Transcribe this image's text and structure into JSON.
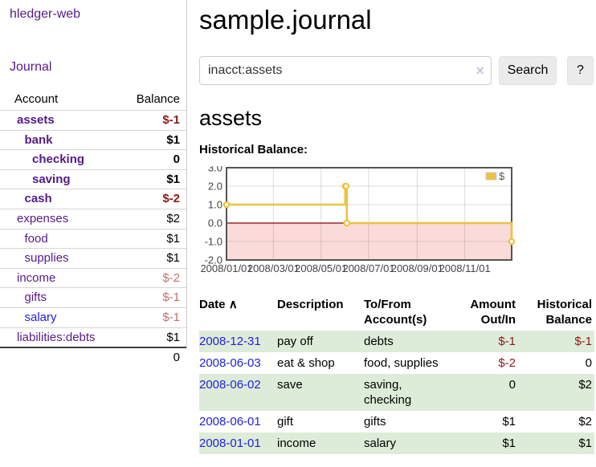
{
  "colors": {
    "purple": "#551a8b",
    "blue": "#2222dd",
    "neg-strong": "#8b1a1a",
    "neg-soft": "#bf7070",
    "row-green": "#ddecd8",
    "gold": "#edc240",
    "pink": "#fbdada",
    "zero": "#8b0000",
    "grid": "#545454"
  },
  "sidebar": {
    "brand": "hledger-web",
    "journal_link": "Journal",
    "table": {
      "account_header": "Account",
      "balance_header": "Balance",
      "rows": [
        {
          "name": "assets",
          "balance": "$-1",
          "depth": 0,
          "bold": true,
          "neg": "strong"
        },
        {
          "name": "bank",
          "balance": "$1",
          "depth": 1,
          "bold": true
        },
        {
          "name": "checking",
          "balance": "0",
          "depth": 2,
          "bold": true
        },
        {
          "name": "saving",
          "balance": "$1",
          "depth": 2,
          "bold": true
        },
        {
          "name": "cash",
          "balance": "$-2",
          "depth": 1,
          "bold": true,
          "neg": "strong"
        },
        {
          "name": "expenses",
          "balance": "$2",
          "depth": 0
        },
        {
          "name": "food",
          "balance": "$1",
          "depth": 1
        },
        {
          "name": "supplies",
          "balance": "$1",
          "depth": 1
        },
        {
          "name": "income",
          "balance": "$-2",
          "depth": 0,
          "neg": "soft"
        },
        {
          "name": "gifts",
          "balance": "$-1",
          "depth": 1,
          "neg": "soft"
        },
        {
          "name": "salary",
          "balance": "$-1",
          "depth": 1,
          "neg": "soft",
          "blue": true
        },
        {
          "name": "liabilities:debts",
          "balance": "$1",
          "depth": 0
        }
      ],
      "total": "0"
    }
  },
  "main": {
    "title": "sample.journal",
    "search": {
      "value": "inacct:assets",
      "clear_icon": "×",
      "button_label": "Search",
      "help_label": "?"
    },
    "account_heading": "assets",
    "chart_label": "Historical Balance:"
  },
  "chart_data": {
    "type": "line",
    "title": "Historical Balance:",
    "style": "step-after",
    "ylim": [
      -2,
      3
    ],
    "x_range_days": 365,
    "grid": true,
    "legend": {
      "label": "$",
      "position": "top-right"
    },
    "series": [
      {
        "name": "$",
        "color": "#edc240",
        "points": [
          {
            "date": "2008/01/01",
            "day": 0,
            "value": 1
          },
          {
            "date": "2008/06/01",
            "day": 152,
            "value": 2
          },
          {
            "date": "2008/06/02",
            "day": 153,
            "value": 2
          },
          {
            "date": "2008/06/03",
            "day": 154,
            "value": 0
          },
          {
            "date": "2008/12/31",
            "day": 365,
            "value": -1
          }
        ]
      }
    ],
    "x_ticks": [
      {
        "label": "2008/01/01",
        "day": 0
      },
      {
        "label": "2008/03/01",
        "day": 60
      },
      {
        "label": "2008/05/01",
        "day": 121
      },
      {
        "label": "2008/07/01",
        "day": 182
      },
      {
        "label": "2008/09/01",
        "day": 244
      },
      {
        "label": "2008/11/01",
        "day": 305
      }
    ],
    "y_ticks": [
      {
        "label": "3.0",
        "value": 3
      },
      {
        "label": "2.0",
        "value": 2
      },
      {
        "label": "1.0",
        "value": 1
      },
      {
        "label": "0.0",
        "value": 0
      },
      {
        "label": "-1.0",
        "value": -1
      },
      {
        "label": "-2.0",
        "value": -2
      }
    ],
    "negative_region_fill": "#fbdada",
    "zero_line_color": "#8b0000"
  },
  "register": {
    "headers": {
      "date": "Date",
      "sort_indicator": "∧",
      "description": "Description",
      "accounts": "To/From Account(s)",
      "amount": "Amount Out/In",
      "balance": "Historical Balance"
    },
    "rows": [
      {
        "date": "2008-12-31",
        "description": "pay off",
        "accounts": "debts",
        "amount": "$-1",
        "amount_neg": true,
        "balance": "$-1",
        "balance_neg": true,
        "shaded": true
      },
      {
        "date": "2008-06-03",
        "description": "eat & shop",
        "accounts": "food, supplies",
        "amount": "$-2",
        "amount_neg": true,
        "balance": "0",
        "balance_neg": false,
        "shaded": false
      },
      {
        "date": "2008-06-02",
        "description": "save",
        "accounts": "saving, checking",
        "amount": "0",
        "amount_neg": false,
        "balance": "$2",
        "balance_neg": false,
        "shaded": true
      },
      {
        "date": "2008-06-01",
        "description": "gift",
        "accounts": "gifts",
        "amount": "$1",
        "amount_neg": false,
        "balance": "$2",
        "balance_neg": false,
        "shaded": false
      },
      {
        "date": "2008-01-01",
        "description": "income",
        "accounts": "salary",
        "amount": "$1",
        "amount_neg": false,
        "balance": "$1",
        "balance_neg": false,
        "shaded": true
      }
    ]
  }
}
